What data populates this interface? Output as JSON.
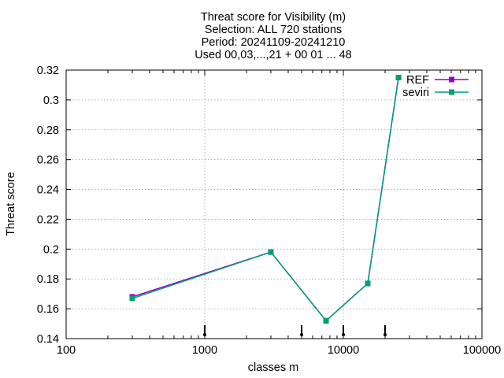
{
  "chart_data": {
    "type": "line",
    "title_lines": [
      "Threat score  for Visibility (m)",
      "Selection: ALL    720 stations",
      "Period: 20241109-20241210",
      "Used 00,03,...,21 + 00 01 ... 48"
    ],
    "xlabel": "classes m",
    "ylabel": "Threat score",
    "x_scale": "log",
    "xlim": [
      100,
      100000
    ],
    "ylim": [
      0.14,
      0.32
    ],
    "x_ticks": [
      {
        "value": 100,
        "label": "100"
      },
      {
        "value": 1000,
        "label": "1000"
      },
      {
        "value": 10000,
        "label": "10000"
      },
      {
        "value": 100000,
        "label": "100000"
      }
    ],
    "y_ticks": [
      {
        "value": 0.14,
        "label": "0.14"
      },
      {
        "value": 0.16,
        "label": "0.16"
      },
      {
        "value": 0.18,
        "label": "0.18"
      },
      {
        "value": 0.2,
        "label": "0.2"
      },
      {
        "value": 0.22,
        "label": "0.22"
      },
      {
        "value": 0.24,
        "label": "0.24"
      },
      {
        "value": 0.26,
        "label": "0.26"
      },
      {
        "value": 0.28,
        "label": "0.28"
      },
      {
        "value": 0.3,
        "label": "0.3"
      },
      {
        "value": 0.32,
        "label": "0.32"
      }
    ],
    "grid": true,
    "legend_position": "top-right",
    "class_markers": [
      1000,
      5000,
      10000,
      20000
    ],
    "series": [
      {
        "name": "REF",
        "color": "#9400d3",
        "x": [
          300,
          3000,
          7500,
          15000,
          25000
        ],
        "y": [
          0.168,
          0.198,
          0.152,
          0.177,
          0.315
        ]
      },
      {
        "name": "seviri",
        "color": "#009e73",
        "x": [
          300,
          3000,
          7500,
          15000,
          25000
        ],
        "y": [
          0.167,
          0.198,
          0.152,
          0.177,
          0.315
        ]
      }
    ]
  }
}
